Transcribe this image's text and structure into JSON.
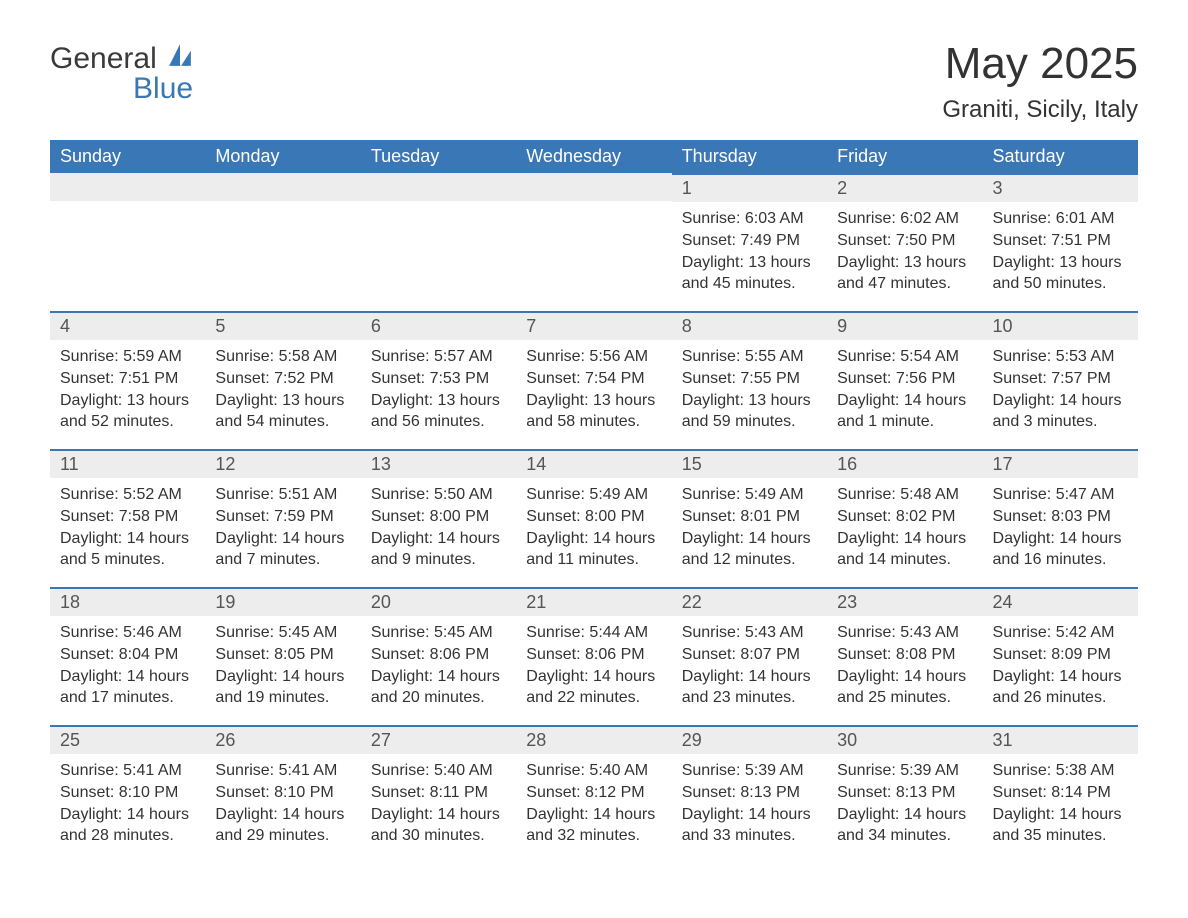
{
  "brand": {
    "line1": "General",
    "line2": "Blue",
    "text_color": "#3a3a3a",
    "accent_color": "#3a77b7"
  },
  "title": "May 2025",
  "location": "Graniti, Sicily, Italy",
  "colors": {
    "header_bg": "#3a77b7",
    "header_text": "#ffffff",
    "daynum_bg": "#ededed",
    "daynum_border": "#3a77b7",
    "body_text": "#333333",
    "page_bg": "#ffffff"
  },
  "typography": {
    "title_fontsize": 44,
    "location_fontsize": 24,
    "header_fontsize": 18,
    "daynum_fontsize": 18,
    "body_fontsize": 16,
    "font_family": "Segoe UI"
  },
  "layout": {
    "columns": 7,
    "rows": 5,
    "leading_blanks": 4
  },
  "weekdays": [
    "Sunday",
    "Monday",
    "Tuesday",
    "Wednesday",
    "Thursday",
    "Friday",
    "Saturday"
  ],
  "days": [
    {
      "n": 1,
      "sunrise": "6:03 AM",
      "sunset": "7:49 PM",
      "daylight": "13 hours and 45 minutes."
    },
    {
      "n": 2,
      "sunrise": "6:02 AM",
      "sunset": "7:50 PM",
      "daylight": "13 hours and 47 minutes."
    },
    {
      "n": 3,
      "sunrise": "6:01 AM",
      "sunset": "7:51 PM",
      "daylight": "13 hours and 50 minutes."
    },
    {
      "n": 4,
      "sunrise": "5:59 AM",
      "sunset": "7:51 PM",
      "daylight": "13 hours and 52 minutes."
    },
    {
      "n": 5,
      "sunrise": "5:58 AM",
      "sunset": "7:52 PM",
      "daylight": "13 hours and 54 minutes."
    },
    {
      "n": 6,
      "sunrise": "5:57 AM",
      "sunset": "7:53 PM",
      "daylight": "13 hours and 56 minutes."
    },
    {
      "n": 7,
      "sunrise": "5:56 AM",
      "sunset": "7:54 PM",
      "daylight": "13 hours and 58 minutes."
    },
    {
      "n": 8,
      "sunrise": "5:55 AM",
      "sunset": "7:55 PM",
      "daylight": "13 hours and 59 minutes."
    },
    {
      "n": 9,
      "sunrise": "5:54 AM",
      "sunset": "7:56 PM",
      "daylight": "14 hours and 1 minute."
    },
    {
      "n": 10,
      "sunrise": "5:53 AM",
      "sunset": "7:57 PM",
      "daylight": "14 hours and 3 minutes."
    },
    {
      "n": 11,
      "sunrise": "5:52 AM",
      "sunset": "7:58 PM",
      "daylight": "14 hours and 5 minutes."
    },
    {
      "n": 12,
      "sunrise": "5:51 AM",
      "sunset": "7:59 PM",
      "daylight": "14 hours and 7 minutes."
    },
    {
      "n": 13,
      "sunrise": "5:50 AM",
      "sunset": "8:00 PM",
      "daylight": "14 hours and 9 minutes."
    },
    {
      "n": 14,
      "sunrise": "5:49 AM",
      "sunset": "8:00 PM",
      "daylight": "14 hours and 11 minutes."
    },
    {
      "n": 15,
      "sunrise": "5:49 AM",
      "sunset": "8:01 PM",
      "daylight": "14 hours and 12 minutes."
    },
    {
      "n": 16,
      "sunrise": "5:48 AM",
      "sunset": "8:02 PM",
      "daylight": "14 hours and 14 minutes."
    },
    {
      "n": 17,
      "sunrise": "5:47 AM",
      "sunset": "8:03 PM",
      "daylight": "14 hours and 16 minutes."
    },
    {
      "n": 18,
      "sunrise": "5:46 AM",
      "sunset": "8:04 PM",
      "daylight": "14 hours and 17 minutes."
    },
    {
      "n": 19,
      "sunrise": "5:45 AM",
      "sunset": "8:05 PM",
      "daylight": "14 hours and 19 minutes."
    },
    {
      "n": 20,
      "sunrise": "5:45 AM",
      "sunset": "8:06 PM",
      "daylight": "14 hours and 20 minutes."
    },
    {
      "n": 21,
      "sunrise": "5:44 AM",
      "sunset": "8:06 PM",
      "daylight": "14 hours and 22 minutes."
    },
    {
      "n": 22,
      "sunrise": "5:43 AM",
      "sunset": "8:07 PM",
      "daylight": "14 hours and 23 minutes."
    },
    {
      "n": 23,
      "sunrise": "5:43 AM",
      "sunset": "8:08 PM",
      "daylight": "14 hours and 25 minutes."
    },
    {
      "n": 24,
      "sunrise": "5:42 AM",
      "sunset": "8:09 PM",
      "daylight": "14 hours and 26 minutes."
    },
    {
      "n": 25,
      "sunrise": "5:41 AM",
      "sunset": "8:10 PM",
      "daylight": "14 hours and 28 minutes."
    },
    {
      "n": 26,
      "sunrise": "5:41 AM",
      "sunset": "8:10 PM",
      "daylight": "14 hours and 29 minutes."
    },
    {
      "n": 27,
      "sunrise": "5:40 AM",
      "sunset": "8:11 PM",
      "daylight": "14 hours and 30 minutes."
    },
    {
      "n": 28,
      "sunrise": "5:40 AM",
      "sunset": "8:12 PM",
      "daylight": "14 hours and 32 minutes."
    },
    {
      "n": 29,
      "sunrise": "5:39 AM",
      "sunset": "8:13 PM",
      "daylight": "14 hours and 33 minutes."
    },
    {
      "n": 30,
      "sunrise": "5:39 AM",
      "sunset": "8:13 PM",
      "daylight": "14 hours and 34 minutes."
    },
    {
      "n": 31,
      "sunrise": "5:38 AM",
      "sunset": "8:14 PM",
      "daylight": "14 hours and 35 minutes."
    }
  ],
  "labels": {
    "sunrise": "Sunrise:",
    "sunset": "Sunset:",
    "daylight": "Daylight:"
  }
}
